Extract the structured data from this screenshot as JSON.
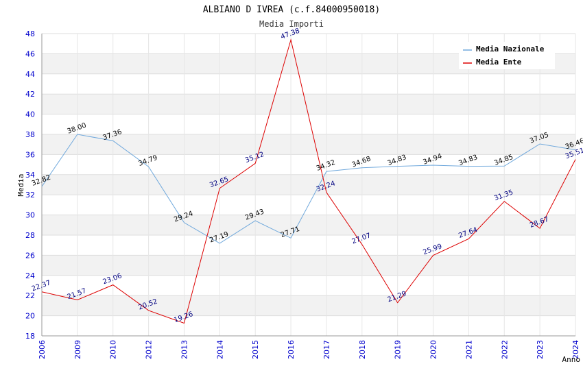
{
  "chart_data": {
    "type": "line",
    "title": "ALBIANO D IVREA (c.f.84000950018)",
    "subtitle": "Media Importi",
    "xlabel": "Anno",
    "ylabel": "Media",
    "ylim": [
      18,
      48
    ],
    "yticks": [
      18,
      20,
      22,
      24,
      26,
      28,
      30,
      32,
      34,
      36,
      38,
      40,
      42,
      44,
      46,
      48
    ],
    "categories": [
      "2006",
      "2009",
      "2010",
      "2012",
      "2013",
      "2014",
      "2015",
      "2016",
      "2017",
      "2018",
      "2019",
      "2020",
      "2021",
      "2022",
      "2023",
      "2024"
    ],
    "grid": true,
    "legend_position": "top-right",
    "series": [
      {
        "name": "Media Nazionale",
        "color": "#6fa8dc",
        "values": [
          32.82,
          38.0,
          37.36,
          34.79,
          29.24,
          27.19,
          29.43,
          27.71,
          34.32,
          34.68,
          34.83,
          34.94,
          34.83,
          34.85,
          37.05,
          36.46
        ],
        "labels": [
          "32.82",
          "38.00",
          "37.36",
          "34.79",
          "29.24",
          "27.19",
          "29.43",
          "27.71",
          "34.32",
          "34.68",
          "34.83",
          "34.94",
          "34.83",
          "34.85",
          "37.05",
          "36.46"
        ]
      },
      {
        "name": "Media Ente",
        "color": "#dd0000",
        "values": [
          22.37,
          21.57,
          23.06,
          20.52,
          19.26,
          32.65,
          35.12,
          47.38,
          32.24,
          27.07,
          21.29,
          25.99,
          27.64,
          31.35,
          28.67,
          35.51
        ],
        "labels": [
          "22.37",
          "21.57",
          "23.06",
          "20.52",
          "19.26",
          "32.65",
          "35.12",
          "47.38",
          "32.24",
          "27.07",
          "21.29",
          "25.99",
          "27.64",
          "31.35",
          "28.67",
          "35.51"
        ]
      }
    ]
  }
}
